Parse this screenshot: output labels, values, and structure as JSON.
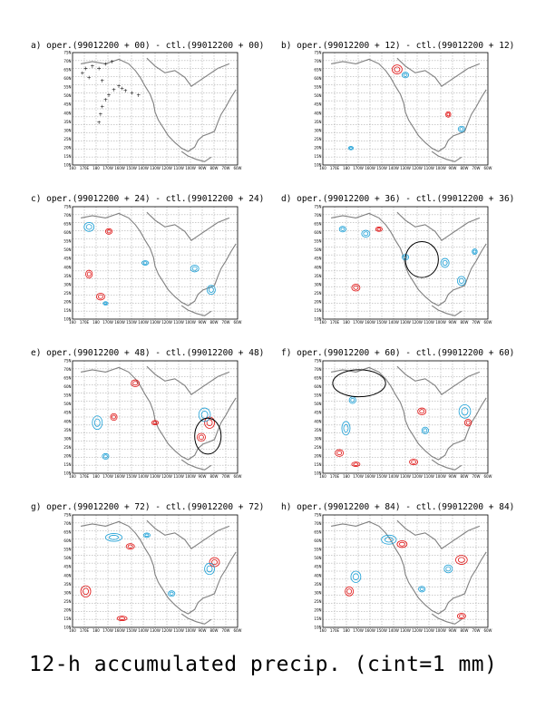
{
  "figure": {
    "caption": "12-h accumulated precip. (cint=1 mm)",
    "y_ticks": [
      "75N",
      "70N",
      "65N",
      "60N",
      "55N",
      "50N",
      "45N",
      "40N",
      "35N",
      "30N",
      "25N",
      "20N",
      "15N",
      "10N"
    ],
    "x_ticks": [
      "160",
      "170E",
      "180",
      "170W",
      "160W",
      "150W",
      "140W",
      "130W",
      "120W",
      "110W",
      "100W",
      "90W",
      "80W",
      "70W",
      "60W"
    ],
    "colors": {
      "positive": "#e01010",
      "negative": "#1a9fd6",
      "coast": "#808080",
      "grid": "#808080",
      "track": "#000000"
    },
    "panels": [
      {
        "id": "a",
        "title": "a) oper.(99012200 + 00) - ctl.(99012200 + 00)"
      },
      {
        "id": "b",
        "title": "b) oper.(99012200 + 12) - ctl.(99012200 + 12)"
      },
      {
        "id": "c",
        "title": "c) oper.(99012200 + 24) - ctl.(99012200 + 24)"
      },
      {
        "id": "d",
        "title": "d) oper.(99012200 + 36) - ctl.(99012200 + 36)"
      },
      {
        "id": "e",
        "title": "e) oper.(99012200 + 48) - ctl.(99012200 + 48)"
      },
      {
        "id": "f",
        "title": "f) oper.(99012200 + 60) - ctl.(99012200 + 60)"
      },
      {
        "id": "g",
        "title": "g) oper.(99012200 + 72) - ctl.(99012200 + 72)"
      },
      {
        "id": "h",
        "title": "h) oper.(99012200 + 84) - ctl.(99012200 + 84)"
      }
    ]
  }
}
